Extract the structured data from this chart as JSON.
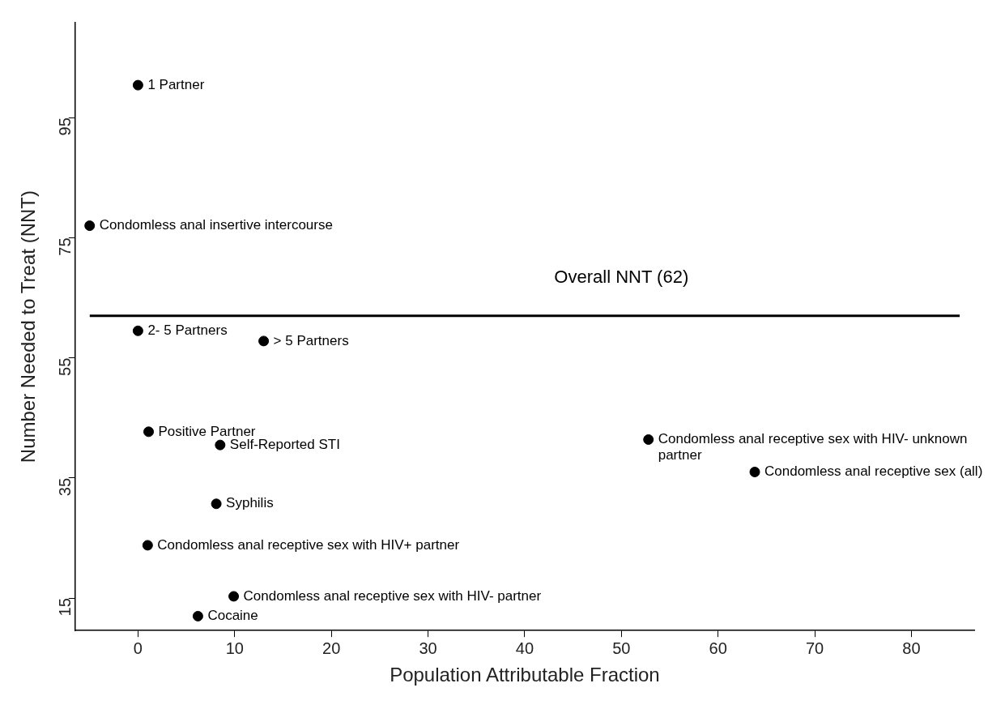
{
  "chart_data": {
    "type": "scatter",
    "xlabel": "Population Attributable Fraction",
    "ylabel": "Number Needed to Treat (NNT)",
    "x": [
      0,
      -5,
      0,
      13,
      1.1,
      8.5,
      8.1,
      1,
      9.9,
      6.2,
      52.8,
      63.8
    ],
    "series": [
      {
        "color": "#000000",
        "values": [
          100.4,
          77,
          59.5,
          57.8,
          42.7,
          40.5,
          30.7,
          23.8,
          15.3,
          12,
          41.4,
          36
        ]
      }
    ],
    "marker": "circle",
    "xlim": [
      -6.5,
      86.5
    ],
    "xticks": [
      0,
      10,
      20,
      30,
      40,
      50,
      60,
      70,
      80
    ],
    "ylim": [
      9.6,
      110.8
    ],
    "yticks": [
      15,
      35,
      55,
      75,
      95
    ],
    "grid": false,
    "legend": false,
    "ref_lines": [
      {
        "axis": "y",
        "value": 62,
        "label": "Overall NNT (62)",
        "color": "#000000"
      }
    ],
    "annotations": [
      {
        "text": "1 Partner",
        "x": 0,
        "y": 100.4
      },
      {
        "text": "Condomless anal insertive intercourse",
        "x": -5,
        "y": 77
      },
      {
        "text": "2- 5 Partners",
        "x": 0,
        "y": 59.5
      },
      {
        "text": "> 5 Partners",
        "x": 13,
        "y": 57.8
      },
      {
        "text": "Positive Partner",
        "x": 1.1,
        "y": 42.7
      },
      {
        "text": "Self-Reported STI",
        "x": 8.5,
        "y": 40.5
      },
      {
        "text": "Syphilis",
        "x": 8.1,
        "y": 30.7
      },
      {
        "text": "Condomless anal receptive sex with HIV+ partner",
        "x": 1,
        "y": 23.8
      },
      {
        "text": "Condomless anal receptive sex with HIV- partner",
        "x": 9.9,
        "y": 15.3
      },
      {
        "text": "Cocaine",
        "x": 6.2,
        "y": 12
      },
      {
        "text": "Condomless anal receptive sex with HIV- unknown partner",
        "x": 52.8,
        "y": 41.4
      },
      {
        "text": "Condomless anal receptive sex (all)",
        "x": 63.8,
        "y": 36
      }
    ]
  }
}
